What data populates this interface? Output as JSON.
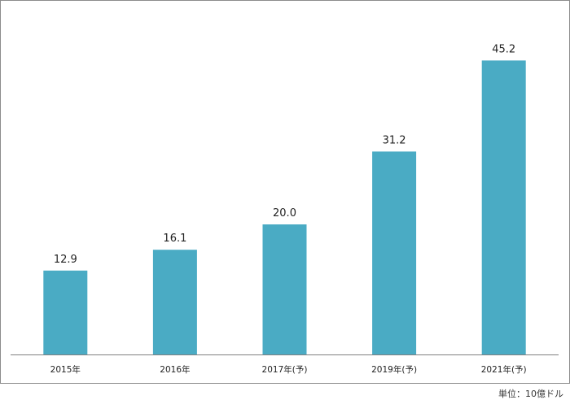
{
  "chart_data": {
    "type": "bar",
    "categories": [
      "2015年",
      "2016年",
      "2017年(予)",
      "2019年(予)",
      "2021年(予)"
    ],
    "values": [
      12.9,
      16.1,
      20.0,
      31.2,
      45.2
    ],
    "value_labels": [
      "12.9",
      "16.1",
      "20.0",
      "31.2",
      "45.2"
    ],
    "bar_color": "#4aabc4",
    "axis_color": "#808080",
    "ylim": [
      0,
      50
    ],
    "grid": false,
    "legend": "none",
    "title": "",
    "xlabel": "",
    "ylabel": ""
  },
  "unit_note": "単位：10億ドル"
}
